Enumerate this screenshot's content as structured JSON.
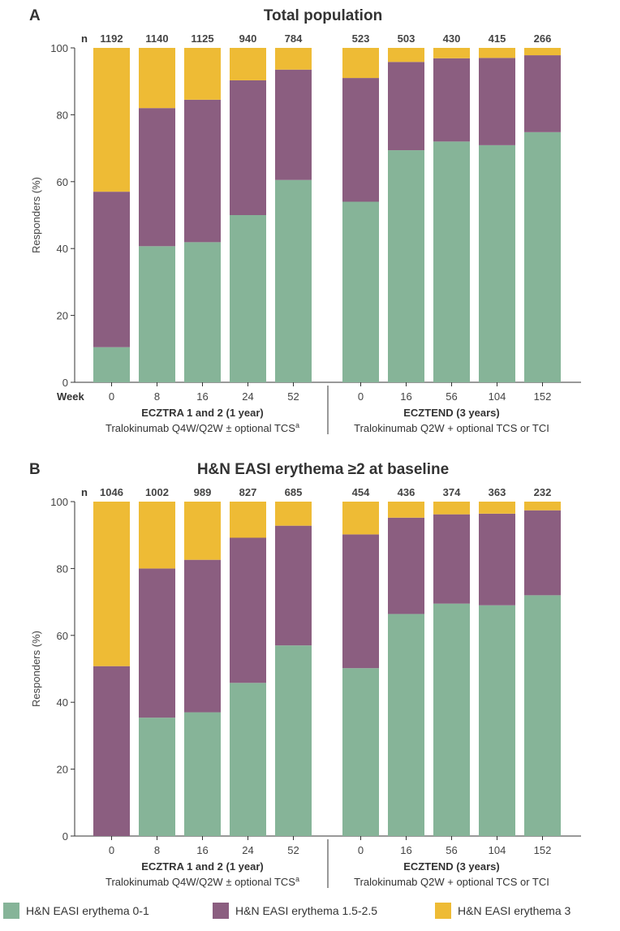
{
  "colors": {
    "erythema_0_1": "#86b498",
    "erythema_1_5_2_5": "#8b5e80",
    "erythema_3": "#eebb35"
  },
  "legend": [
    {
      "label": "H&N EASI erythema 0-1",
      "color": "#86b498"
    },
    {
      "label": "H&N EASI erythema 1.5-2.5",
      "color": "#8b5e80"
    },
    {
      "label": "H&N EASI erythema 3",
      "color": "#eebb35"
    }
  ],
  "chart_data": [
    {
      "type": "bar",
      "stacked": true,
      "panel": "A",
      "title": "Total population",
      "ylabel": "Responders (%)",
      "ylim": [
        0,
        100
      ],
      "yticks": [
        0,
        20,
        40,
        60,
        80,
        100
      ],
      "n_label": "n",
      "week_label": "Week",
      "groups": [
        {
          "label": "ECZTRA 1 and 2 (1 year)",
          "sublabel": "Tralokinumab Q4W/Q2W ± optional TCS",
          "sublabel_sup": "a",
          "weeks": [
            "0",
            "8",
            "16",
            "24",
            "52"
          ],
          "n": [
            "1192",
            "1140",
            "1125",
            "940",
            "784"
          ],
          "series": [
            {
              "name": "H&N EASI erythema 0-1",
              "values": [
                10.5,
                40.7,
                41.9,
                50.0,
                60.5
              ]
            },
            {
              "name": "H&N EASI erythema 1.5-2.5",
              "values": [
                46.5,
                41.3,
                42.6,
                40.3,
                33.0
              ]
            },
            {
              "name": "H&N EASI erythema 3",
              "values": [
                43.0,
                18.0,
                15.5,
                9.7,
                6.5
              ]
            }
          ]
        },
        {
          "label": "ECZTEND (3 years)",
          "sublabel": "Tralokinumab Q2W + optional TCS or TCI",
          "sublabel_sup": "",
          "weeks": [
            "0",
            "16",
            "56",
            "104",
            "152"
          ],
          "n": [
            "523",
            "503",
            "430",
            "415",
            "266"
          ],
          "series": [
            {
              "name": "H&N EASI erythema 0-1",
              "values": [
                54.0,
                69.4,
                72.0,
                70.9,
                74.8
              ]
            },
            {
              "name": "H&N EASI erythema 1.5-2.5",
              "values": [
                37.0,
                26.4,
                24.9,
                26.1,
                23.0
              ]
            },
            {
              "name": "H&N EASI erythema 3",
              "values": [
                9.0,
                4.2,
                3.1,
                3.0,
                2.2
              ]
            }
          ]
        }
      ]
    },
    {
      "type": "bar",
      "stacked": true,
      "panel": "B",
      "title": "H&N EASI erythema ≥2 at baseline",
      "ylabel": "Responders (%)",
      "ylim": [
        0,
        100
      ],
      "yticks": [
        0,
        20,
        40,
        60,
        80,
        100
      ],
      "n_label": "n",
      "week_label": "",
      "groups": [
        {
          "label": "ECZTRA 1 and 2 (1 year)",
          "sublabel": "Tralokinumab Q4W/Q2W ± optional TCS",
          "sublabel_sup": "a",
          "weeks": [
            "0",
            "8",
            "16",
            "24",
            "52"
          ],
          "n": [
            "1046",
            "1002",
            "989",
            "827",
            "685"
          ],
          "series": [
            {
              "name": "H&N EASI erythema 0-1",
              "values": [
                0.0,
                35.4,
                37.0,
                45.8,
                57.0
              ]
            },
            {
              "name": "H&N EASI erythema 1.5-2.5",
              "values": [
                50.8,
                44.6,
                45.6,
                43.4,
                35.8
              ]
            },
            {
              "name": "H&N EASI erythema 3",
              "values": [
                49.2,
                20.0,
                17.4,
                10.8,
                7.2
              ]
            }
          ]
        },
        {
          "label": "ECZTEND (3 years)",
          "sublabel": "Tralokinumab Q2W + optional TCS or TCI",
          "sublabel_sup": "",
          "weeks": [
            "0",
            "16",
            "56",
            "104",
            "152"
          ],
          "n": [
            "454",
            "436",
            "374",
            "363",
            "232"
          ],
          "series": [
            {
              "name": "H&N EASI erythema 0-1",
              "values": [
                50.2,
                66.4,
                69.5,
                69.0,
                72.0
              ]
            },
            {
              "name": "H&N EASI erythema 1.5-2.5",
              "values": [
                40.0,
                28.8,
                26.7,
                27.4,
                25.4
              ]
            },
            {
              "name": "H&N EASI erythema 3",
              "values": [
                9.8,
                4.8,
                3.8,
                3.6,
                2.6
              ]
            }
          ]
        }
      ]
    }
  ]
}
